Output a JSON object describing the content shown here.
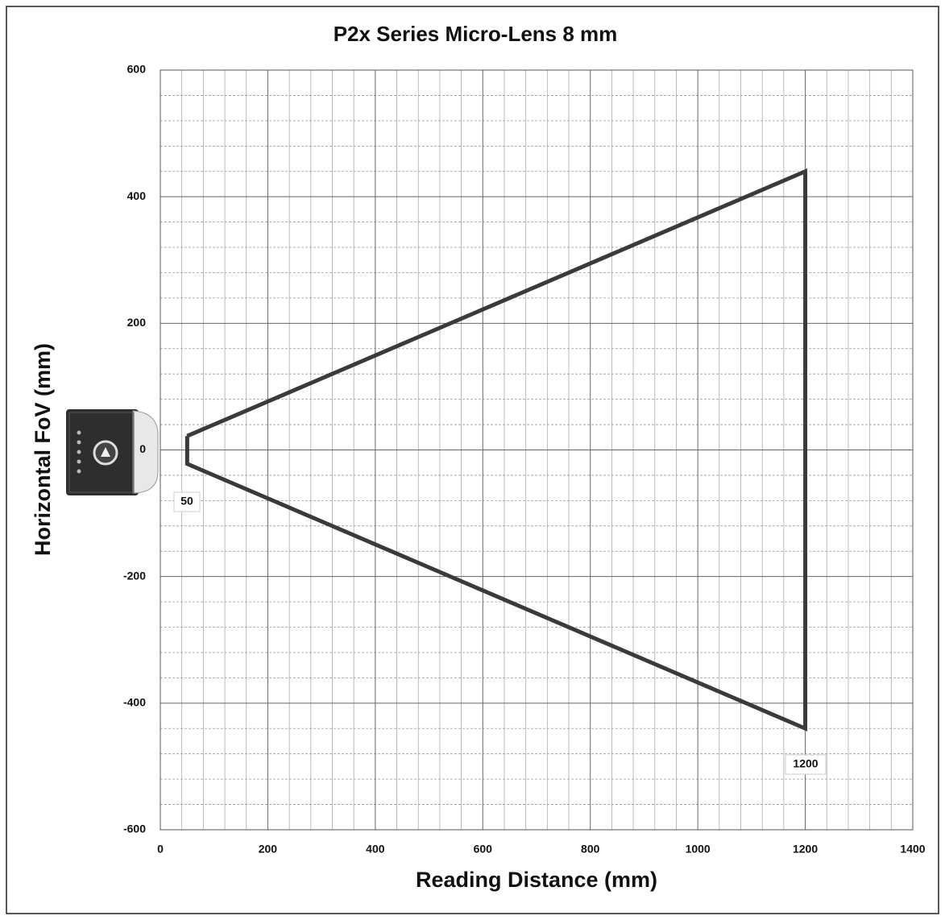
{
  "chart_data": {
    "type": "line",
    "title": "P2x Series Micro-Lens 8 mm",
    "x_label": "Reading Distance (mm)",
    "y_label": "Horizontal FoV (mm)",
    "series": [
      {
        "color": "#3a3a3a",
        "x": [
          50,
          1200,
          1200,
          50,
          50
        ],
        "values": [
          22,
          440,
          -440,
          -22,
          22
        ]
      }
    ],
    "xlim": [
      0,
      1400
    ],
    "xticks": [
      0,
      200,
      400,
      600,
      800,
      1000,
      1200,
      1400
    ],
    "ylim": [
      -600,
      600
    ],
    "yticks": [
      -600,
      -400,
      -200,
      0,
      200,
      400,
      600
    ],
    "grid": true
  }
}
